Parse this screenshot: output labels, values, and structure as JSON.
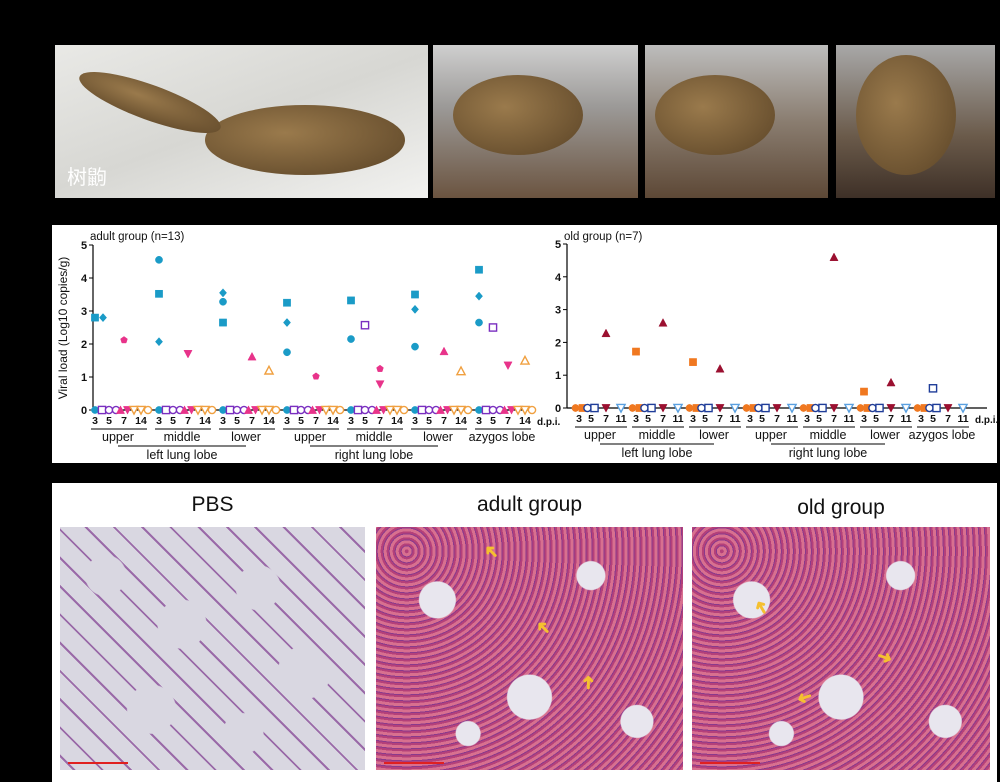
{
  "photos": {
    "caption": "树鼩"
  },
  "histology": {
    "titles": [
      "PBS",
      "adult group",
      "old group"
    ]
  },
  "chart_data": [
    {
      "type": "scatter",
      "title": "adult group (n=13)",
      "ylabel": "Viral load (Log10 copies/g)",
      "ylim": [
        0,
        5
      ],
      "yticks": [
        0,
        1,
        2,
        3,
        4,
        5
      ],
      "dpi": [
        "3",
        "5",
        "7",
        "14"
      ],
      "dpi_label": "d.p.i.",
      "regions": [
        "upper",
        "middle",
        "lower",
        "upper",
        "middle",
        "lower",
        "azygos lobe"
      ],
      "lobes": [
        {
          "label": "left lung lobe",
          "regions": [
            0,
            1,
            2
          ]
        },
        {
          "label": "right lung lobe",
          "regions": [
            3,
            4,
            5
          ]
        }
      ],
      "colors": {
        "3": "#1a9bc7",
        "5": "#7a2fc0",
        "7": "#e8338a",
        "14": "#f0a040"
      },
      "zero_markers": {
        "3": [
          "circle"
        ],
        "5": [
          "open-square",
          "open-circle",
          "open-circle"
        ],
        "7": [
          "triangle",
          "down-triangle"
        ],
        "14": [
          "open-down-triangle",
          "open-down-triangle",
          "open-circle"
        ]
      },
      "points": [
        {
          "region": 0,
          "dpi": "3",
          "value": 2.8,
          "shape": "square"
        },
        {
          "region": 0,
          "dpi": "3",
          "value": 2.8,
          "shape": "diamond"
        },
        {
          "region": 0,
          "dpi": "7",
          "value": 2.12,
          "shape": "pentagon"
        },
        {
          "region": 1,
          "dpi": "3",
          "value": 4.55,
          "shape": "circle"
        },
        {
          "region": 1,
          "dpi": "3",
          "value": 3.52,
          "shape": "square"
        },
        {
          "region": 1,
          "dpi": "3",
          "value": 2.07,
          "shape": "diamond"
        },
        {
          "region": 1,
          "dpi": "7",
          "value": 1.7,
          "shape": "down-triangle"
        },
        {
          "region": 2,
          "dpi": "3",
          "value": 3.55,
          "shape": "diamond"
        },
        {
          "region": 2,
          "dpi": "3",
          "value": 3.28,
          "shape": "circle"
        },
        {
          "region": 2,
          "dpi": "3",
          "value": 2.65,
          "shape": "square"
        },
        {
          "region": 2,
          "dpi": "7",
          "value": 1.62,
          "shape": "triangle"
        },
        {
          "region": 2,
          "dpi": "14",
          "value": 1.2,
          "shape": "open-triangle"
        },
        {
          "region": 3,
          "dpi": "3",
          "value": 3.25,
          "shape": "square"
        },
        {
          "region": 3,
          "dpi": "3",
          "value": 2.65,
          "shape": "diamond"
        },
        {
          "region": 3,
          "dpi": "3",
          "value": 1.75,
          "shape": "circle"
        },
        {
          "region": 3,
          "dpi": "7",
          "value": 1.02,
          "shape": "pentagon"
        },
        {
          "region": 4,
          "dpi": "3",
          "value": 3.32,
          "shape": "square"
        },
        {
          "region": 4,
          "dpi": "3",
          "value": 2.15,
          "shape": "circle"
        },
        {
          "region": 4,
          "dpi": "5",
          "value": 2.57,
          "shape": "open-square"
        },
        {
          "region": 4,
          "dpi": "7",
          "value": 1.25,
          "shape": "pentagon"
        },
        {
          "region": 4,
          "dpi": "7",
          "value": 0.78,
          "shape": "down-triangle"
        },
        {
          "region": 5,
          "dpi": "3",
          "value": 3.5,
          "shape": "square"
        },
        {
          "region": 5,
          "dpi": "3",
          "value": 3.05,
          "shape": "diamond"
        },
        {
          "region": 5,
          "dpi": "3",
          "value": 1.92,
          "shape": "circle"
        },
        {
          "region": 5,
          "dpi": "7",
          "value": 1.78,
          "shape": "triangle"
        },
        {
          "region": 5,
          "dpi": "14",
          "value": 1.18,
          "shape": "open-triangle"
        },
        {
          "region": 6,
          "dpi": "3",
          "value": 4.25,
          "shape": "square"
        },
        {
          "region": 6,
          "dpi": "3",
          "value": 3.45,
          "shape": "diamond"
        },
        {
          "region": 6,
          "dpi": "3",
          "value": 2.65,
          "shape": "circle"
        },
        {
          "region": 6,
          "dpi": "5",
          "value": 2.5,
          "shape": "open-square"
        },
        {
          "region": 6,
          "dpi": "7",
          "value": 1.35,
          "shape": "down-triangle"
        },
        {
          "region": 6,
          "dpi": "14",
          "value": 1.5,
          "shape": "open-triangle"
        }
      ]
    },
    {
      "type": "scatter",
      "title": "old group (n=7)",
      "ylim": [
        0,
        5
      ],
      "yticks": [
        0,
        1,
        2,
        3,
        4,
        5
      ],
      "dpi": [
        "3",
        "5",
        "7",
        "11"
      ],
      "dpi_label": "d.p.i.",
      "regions": [
        "upper",
        "middle",
        "lower",
        "upper",
        "middle",
        "lower",
        "azygos lobe"
      ],
      "lobes": [
        {
          "label": "left lung lobe",
          "regions": [
            0,
            1,
            2
          ]
        },
        {
          "label": "right lung lobe",
          "regions": [
            3,
            4,
            5
          ]
        }
      ],
      "colors": {
        "3": "#f07820",
        "5": "#1f3d99",
        "7": "#9b1030",
        "11": "#5aa0e0"
      },
      "zero_markers": {
        "3": [
          "circle",
          "square"
        ],
        "5": [
          "open-circle",
          "open-square"
        ],
        "7": [
          "down-triangle"
        ],
        "11": [
          "open-down-triangle"
        ]
      },
      "points": [
        {
          "region": 0,
          "dpi": "7",
          "value": 2.28,
          "shape": "triangle"
        },
        {
          "region": 1,
          "dpi": "3",
          "value": 1.72,
          "shape": "square"
        },
        {
          "region": 1,
          "dpi": "7",
          "value": 2.6,
          "shape": "triangle"
        },
        {
          "region": 2,
          "dpi": "3",
          "value": 1.4,
          "shape": "square"
        },
        {
          "region": 2,
          "dpi": "7",
          "value": 1.2,
          "shape": "triangle"
        },
        {
          "region": 4,
          "dpi": "7",
          "value": 4.6,
          "shape": "triangle"
        },
        {
          "region": 5,
          "dpi": "3",
          "value": 0.5,
          "shape": "square"
        },
        {
          "region": 5,
          "dpi": "7",
          "value": 0.78,
          "shape": "triangle"
        },
        {
          "region": 6,
          "dpi": "5",
          "value": 0.6,
          "shape": "open-square"
        }
      ]
    }
  ]
}
